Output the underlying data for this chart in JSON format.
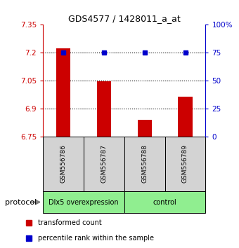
{
  "title": "GDS4577 / 1428011_a_at",
  "samples": [
    "GSM556786",
    "GSM556787",
    "GSM556788",
    "GSM556789"
  ],
  "bar_values": [
    7.225,
    7.045,
    6.84,
    6.965
  ],
  "percentile_values": [
    75,
    75,
    75,
    75
  ],
  "ylim_left": [
    6.75,
    7.35
  ],
  "ylim_right": [
    0,
    100
  ],
  "yticks_left": [
    6.75,
    6.9,
    7.05,
    7.2,
    7.35
  ],
  "yticks_right": [
    0,
    25,
    50,
    75,
    100
  ],
  "ytick_labels_left": [
    "6.75",
    "6.9",
    "7.05",
    "7.2",
    "7.35"
  ],
  "ytick_labels_right": [
    "0",
    "25",
    "50",
    "75",
    "100%"
  ],
  "hlines": [
    7.2,
    7.05,
    6.9
  ],
  "bar_color": "#cc0000",
  "bar_bottom": 6.75,
  "marker_color": "#0000cc",
  "marker_size": 5,
  "groups": [
    {
      "label": "Dlx5 overexpression",
      "indices": [
        0,
        1
      ],
      "color": "#90ee90"
    },
    {
      "label": "control",
      "indices": [
        2,
        3
      ],
      "color": "#90ee90"
    }
  ],
  "protocol_label": "protocol",
  "legend_red_label": "transformed count",
  "legend_blue_label": "percentile rank within the sample",
  "bar_width": 0.35,
  "axis_left_color": "#cc0000",
  "axis_right_color": "#0000cc",
  "background_color": "#ffffff",
  "fig_width": 3.4,
  "fig_height": 3.54,
  "dpi": 100
}
